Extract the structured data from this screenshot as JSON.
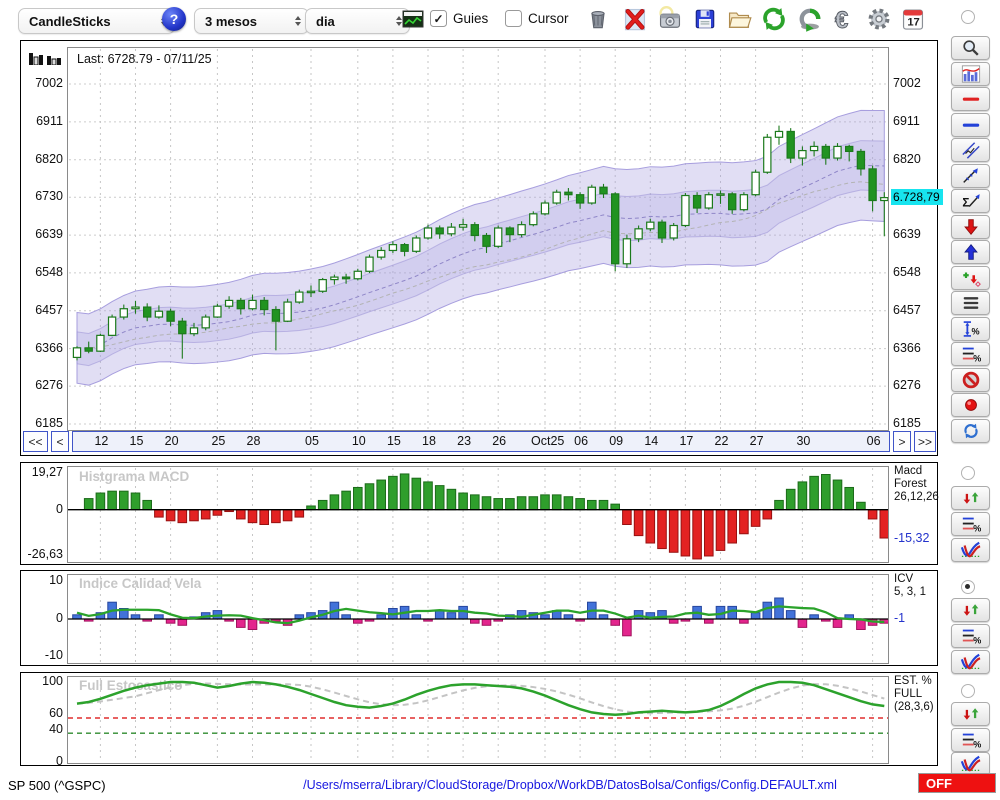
{
  "toolbar": {
    "chart_type": "CandleSticks",
    "period": "3 mesos",
    "interval": "dia",
    "guies_label": "Guies",
    "cursor_label": "Cursor",
    "guies_checked": true,
    "cursor_checked": false,
    "calendar_day": "17"
  },
  "icons": {
    "question": "?",
    "euro": "€",
    "sigma": "Σ",
    "percent": "%",
    "check": "✓"
  },
  "main_chart": {
    "last_label": "Last: 6728.79 - 07/11/25",
    "y_ticks": [
      7002,
      6911,
      6820,
      6730,
      6639,
      6548,
      6457,
      6366,
      6276,
      6185
    ],
    "price_tag": "6.728,79",
    "price_tag_value": 6728.79,
    "nav": {
      "first": "<<",
      "prev": "<",
      "next": ">",
      "last": ">>"
    },
    "x_labels": [
      [
        "12",
        2
      ],
      [
        "15",
        5
      ],
      [
        "20",
        8
      ],
      [
        "25",
        12
      ],
      [
        "28",
        15
      ],
      [
        "05",
        20
      ],
      [
        "10",
        24
      ],
      [
        "15",
        27
      ],
      [
        "18",
        30
      ],
      [
        "23",
        33
      ],
      [
        "26",
        36
      ],
      [
        "Oct25",
        40
      ],
      [
        "06",
        43
      ],
      [
        "09",
        46
      ],
      [
        "14",
        49
      ],
      [
        "17",
        52
      ],
      [
        "22",
        55
      ],
      [
        "27",
        58
      ],
      [
        "30",
        62
      ],
      [
        "06",
        68
      ]
    ]
  },
  "macd_panel": {
    "title": "Histgrama MACD",
    "y_max_label": "19,27",
    "y_zero_label": "0",
    "y_min_label": "-26,63",
    "name_lines": [
      "Macd",
      "Forest",
      "26,12,26"
    ],
    "value": "-15,32"
  },
  "icv_panel": {
    "title": "Indice Calidad Vela",
    "y_max_label": "10",
    "y_zero_label": "0",
    "y_min_label": "-10",
    "name_lines": [
      "ICV",
      "5, 3, 1"
    ],
    "value": "-1"
  },
  "est_panel": {
    "title": "Full Estocastico",
    "y_ticks": [
      [
        "100",
        100
      ],
      [
        "60",
        60
      ],
      [
        "40",
        40
      ],
      [
        "0",
        0
      ]
    ],
    "name_lines": [
      "EST. %",
      "FULL",
      "(28,3,6)"
    ]
  },
  "status_bar": {
    "symbol": "SP 500 (^GSPC)",
    "config_path": "/Users/mserra/Library/CloudStorage/Dropbox/WorkDB/DatosBolsa/Configs/Config.DEFAULT.xml",
    "off_label": "OFF"
  },
  "chart_data": {
    "type": "candlestick+indicators",
    "price": {
      "ylim": [
        6185,
        7002
      ],
      "candles": [
        [
          6345,
          6372,
          6338,
          6368
        ],
        [
          6368,
          6383,
          6355,
          6360
        ],
        [
          6360,
          6402,
          6358,
          6398
        ],
        [
          6398,
          6448,
          6396,
          6442
        ],
        [
          6442,
          6472,
          6436,
          6462
        ],
        [
          6462,
          6481,
          6450,
          6466
        ],
        [
          6466,
          6475,
          6432,
          6442
        ],
        [
          6442,
          6470,
          6438,
          6456
        ],
        [
          6456,
          6462,
          6420,
          6432
        ],
        [
          6432,
          6440,
          6342,
          6402
        ],
        [
          6402,
          6428,
          6396,
          6416
        ],
        [
          6416,
          6448,
          6410,
          6442
        ],
        [
          6442,
          6474,
          6440,
          6468
        ],
        [
          6468,
          6492,
          6462,
          6482
        ],
        [
          6482,
          6488,
          6448,
          6462
        ],
        [
          6462,
          6496,
          6458,
          6482
        ],
        [
          6482,
          6490,
          6446,
          6460
        ],
        [
          6460,
          6468,
          6362,
          6432
        ],
        [
          6432,
          6486,
          6430,
          6478
        ],
        [
          6478,
          6508,
          6474,
          6502
        ],
        [
          6502,
          6518,
          6490,
          6504
        ],
        [
          6504,
          6536,
          6500,
          6532
        ],
        [
          6532,
          6544,
          6520,
          6538
        ],
        [
          6538,
          6546,
          6522,
          6534
        ],
        [
          6534,
          6558,
          6530,
          6552
        ],
        [
          6552,
          6592,
          6548,
          6586
        ],
        [
          6586,
          6610,
          6580,
          6602
        ],
        [
          6602,
          6624,
          6596,
          6616
        ],
        [
          6616,
          6620,
          6588,
          6600
        ],
        [
          6600,
          6638,
          6596,
          6632
        ],
        [
          6632,
          6664,
          6628,
          6656
        ],
        [
          6656,
          6662,
          6630,
          6642
        ],
        [
          6642,
          6668,
          6636,
          6658
        ],
        [
          6658,
          6678,
          6650,
          6664
        ],
        [
          6664,
          6670,
          6624,
          6638
        ],
        [
          6638,
          6644,
          6596,
          6612
        ],
        [
          6612,
          6662,
          6608,
          6656
        ],
        [
          6656,
          6660,
          6622,
          6640
        ],
        [
          6640,
          6672,
          6634,
          6664
        ],
        [
          6664,
          6696,
          6660,
          6690
        ],
        [
          6690,
          6722,
          6686,
          6716
        ],
        [
          6716,
          6748,
          6712,
          6742
        ],
        [
          6742,
          6752,
          6722,
          6736
        ],
        [
          6736,
          6742,
          6702,
          6716
        ],
        [
          6716,
          6760,
          6712,
          6754
        ],
        [
          6754,
          6762,
          6728,
          6738
        ],
        [
          6738,
          6742,
          6552,
          6570
        ],
        [
          6570,
          6640,
          6560,
          6630
        ],
        [
          6630,
          6662,
          6622,
          6654
        ],
        [
          6654,
          6678,
          6648,
          6670
        ],
        [
          6670,
          6676,
          6620,
          6632
        ],
        [
          6632,
          6668,
          6626,
          6662
        ],
        [
          6662,
          6740,
          6658,
          6734
        ],
        [
          6734,
          6742,
          6692,
          6704
        ],
        [
          6704,
          6742,
          6700,
          6736
        ],
        [
          6736,
          6746,
          6714,
          6738
        ],
        [
          6738,
          6742,
          6690,
          6700
        ],
        [
          6700,
          6742,
          6696,
          6736
        ],
        [
          6736,
          6796,
          6732,
          6790
        ],
        [
          6790,
          6882,
          6786,
          6874
        ],
        [
          6874,
          6902,
          6856,
          6888
        ],
        [
          6888,
          6896,
          6812,
          6824
        ],
        [
          6824,
          6852,
          6806,
          6842
        ],
        [
          6842,
          6864,
          6828,
          6852
        ],
        [
          6852,
          6858,
          6808,
          6824
        ],
        [
          6824,
          6860,
          6818,
          6852
        ],
        [
          6852,
          6856,
          6816,
          6840
        ],
        [
          6840,
          6846,
          6782,
          6798
        ],
        [
          6798,
          6806,
          6696,
          6722
        ],
        [
          6722,
          6742,
          6636,
          6729
        ]
      ]
    },
    "macd": {
      "ylim": [
        -26.63,
        19.27
      ],
      "values": [
        0,
        6,
        9,
        10,
        10,
        9,
        5,
        -4,
        -6,
        -7,
        -6,
        -5,
        -3,
        -1,
        -5,
        -7,
        -8,
        -7,
        -6,
        -4,
        2,
        5,
        8,
        10,
        12,
        14,
        16,
        18,
        19.3,
        17,
        15,
        13,
        11,
        9,
        8,
        7,
        6,
        6,
        7,
        7,
        8,
        8,
        7,
        6,
        5,
        5,
        3,
        -8,
        -14,
        -18,
        -21,
        -23,
        -25,
        -26.6,
        -25,
        -22,
        -18,
        -13,
        -9,
        -5,
        5,
        11,
        15,
        18,
        19,
        16,
        12,
        4,
        -5,
        -15.3
      ]
    },
    "icv": {
      "ylim": [
        -10,
        10
      ],
      "values": [
        1,
        -0.5,
        1.5,
        4,
        2.5,
        1,
        -0.5,
        1,
        -1,
        -1.5,
        0.5,
        1.5,
        2,
        -0.5,
        -2,
        -2.5,
        -1,
        -0.5,
        -1.5,
        1,
        1.5,
        2,
        4,
        1,
        -1,
        -0.5,
        1,
        2.5,
        3,
        1,
        -0.5,
        2,
        1.5,
        3,
        -1,
        -1.5,
        -0.5,
        1,
        2,
        1.5,
        1,
        2,
        1,
        -0.5,
        4,
        1,
        -1.5,
        -4,
        2,
        1.5,
        2,
        -1,
        -0.5,
        3,
        -1,
        3,
        3,
        -1,
        1.5,
        4,
        5,
        2,
        -2,
        1,
        -0.5,
        -2,
        1,
        -2.5,
        -1.5,
        -1
      ]
    },
    "est": {
      "ylim": [
        0,
        100
      ],
      "k": [
        73,
        75,
        79,
        84,
        89,
        93,
        96,
        98,
        100,
        100,
        99,
        96,
        93,
        95,
        98,
        100,
        99,
        97,
        94,
        90,
        85,
        80,
        75,
        71,
        69,
        68,
        70,
        73,
        78,
        84,
        89,
        93,
        96,
        97,
        97,
        96,
        95,
        94,
        92,
        88,
        83,
        77,
        71,
        66,
        62,
        60,
        59,
        60,
        62,
        63,
        64,
        63,
        62,
        63,
        65,
        70,
        77,
        85,
        92,
        97,
        100,
        100,
        99,
        96,
        91,
        86,
        81,
        76,
        72,
        70
      ],
      "thresholds": {
        "upper": 55,
        "lower": 36
      }
    }
  }
}
